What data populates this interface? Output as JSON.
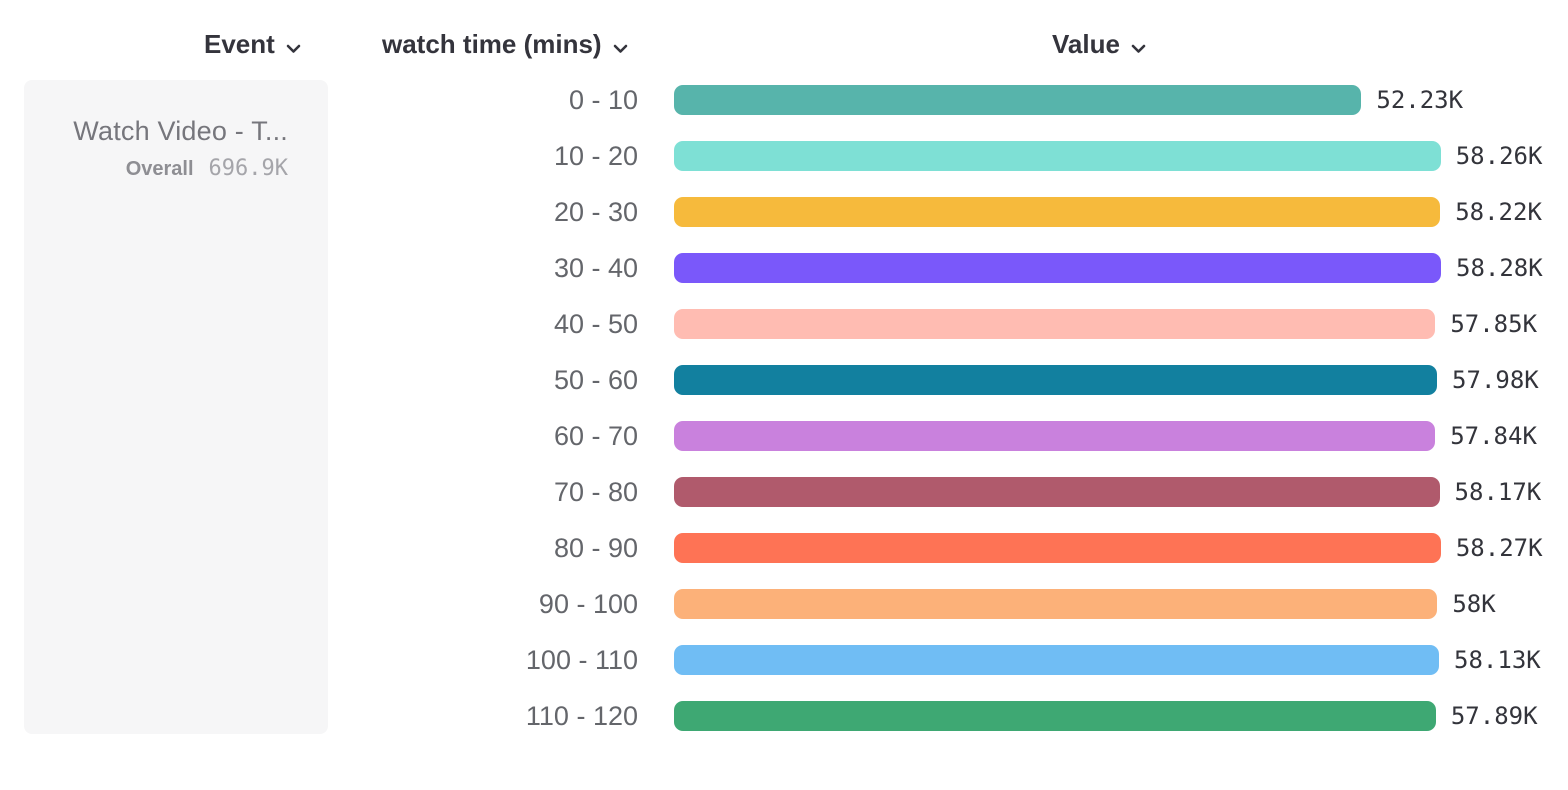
{
  "header": {
    "columns": [
      {
        "id": "event",
        "label": "Event"
      },
      {
        "id": "breakdown",
        "label": "watch time (mins)"
      },
      {
        "id": "value",
        "label": "Value"
      }
    ]
  },
  "event_card": {
    "name": "Watch Video - T...",
    "overall_label": "Overall",
    "overall_value": "696.9K"
  },
  "chart_data": {
    "type": "bar",
    "orientation": "horizontal",
    "title": "",
    "xlabel": "Value",
    "ylabel": "watch time (mins)",
    "xlim": [
      0,
      58280
    ],
    "grid": false,
    "categories": [
      "0 - 10",
      "10 - 20",
      "20 - 30",
      "30 - 40",
      "40 - 50",
      "50 - 60",
      "60 - 70",
      "70 - 80",
      "80 - 90",
      "90 - 100",
      "100 - 110",
      "110 - 120"
    ],
    "values": [
      52230,
      58260,
      58220,
      58280,
      57850,
      57980,
      57840,
      58170,
      58270,
      58000,
      58130,
      57890
    ],
    "value_labels": [
      "52.23K",
      "58.26K",
      "58.22K",
      "58.28K",
      "57.85K",
      "57.98K",
      "57.84K",
      "58.17K",
      "58.27K",
      "58K",
      "58.13K",
      "57.89K"
    ],
    "bar_colors": [
      "#57b4ab",
      "#7ee0d5",
      "#f6ba3c",
      "#7a58fa",
      "#ffbcb2",
      "#12809f",
      "#c981dd",
      "#b05a6c",
      "#fe7355",
      "#fcb179",
      "#70bdf4",
      "#3ea873"
    ]
  },
  "icons": {
    "chevron_down": "chevron-down"
  },
  "layout_colors": {
    "card_background": "#f6f6f7",
    "header_text": "#34343c",
    "row_label_text": "#64666b",
    "value_text": "#33343b"
  }
}
